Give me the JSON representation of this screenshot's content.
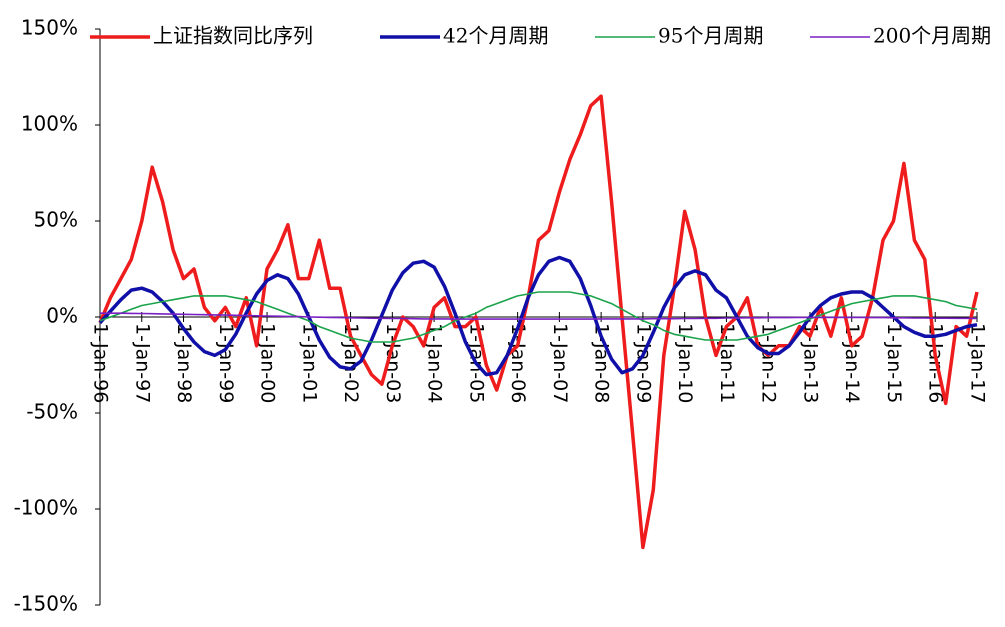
{
  "chart_data": {
    "type": "line",
    "x": [
      "1996-01-01",
      "1996-04-01",
      "1996-07-01",
      "1996-10-01",
      "1997-01-01",
      "1997-04-01",
      "1997-07-01",
      "1997-10-01",
      "1998-01-01",
      "1998-04-01",
      "1998-07-01",
      "1998-10-01",
      "1999-01-01",
      "1999-04-01",
      "1999-07-01",
      "1999-10-01",
      "2000-01-01",
      "2000-04-01",
      "2000-07-01",
      "2000-10-01",
      "2001-01-01",
      "2001-04-01",
      "2001-07-01",
      "2001-10-01",
      "2002-01-01",
      "2002-04-01",
      "2002-07-01",
      "2002-10-01",
      "2003-01-01",
      "2003-04-01",
      "2003-07-01",
      "2003-10-01",
      "2004-01-01",
      "2004-04-01",
      "2004-07-01",
      "2004-10-01",
      "2005-01-01",
      "2005-04-01",
      "2005-07-01",
      "2005-10-01",
      "2006-01-01",
      "2006-04-01",
      "2006-07-01",
      "2006-10-01",
      "2007-01-01",
      "2007-04-01",
      "2007-07-01",
      "2007-10-01",
      "2008-01-01",
      "2008-04-01",
      "2008-07-01",
      "2008-10-01",
      "2009-01-01",
      "2009-04-01",
      "2009-07-01",
      "2009-10-01",
      "2010-01-01",
      "2010-04-01",
      "2010-07-01",
      "2010-10-01",
      "2011-01-01",
      "2011-04-01",
      "2011-07-01",
      "2011-10-01",
      "2012-01-01",
      "2012-04-01",
      "2012-07-01",
      "2012-10-01",
      "2013-01-01",
      "2013-04-01",
      "2013-07-01",
      "2013-10-01",
      "2014-01-01",
      "2014-04-01",
      "2014-07-01",
      "2014-10-01",
      "2015-01-01",
      "2015-04-01",
      "2015-07-01",
      "2015-10-01",
      "2016-01-01",
      "2016-04-01",
      "2016-07-01",
      "2016-10-01",
      "2017-01-01"
    ],
    "series": [
      {
        "name": "上证指数同比序列",
        "color": "#ee1c1c",
        "width": 3.5,
        "values": [
          -3,
          10,
          20,
          30,
          50,
          78,
          60,
          35,
          20,
          25,
          5,
          -2,
          5,
          -5,
          10,
          -15,
          25,
          35,
          48,
          20,
          20,
          40,
          15,
          15,
          -10,
          -20,
          -30,
          -35,
          -15,
          0,
          -5,
          -15,
          5,
          10,
          -5,
          -5,
          0,
          -25,
          -38,
          -20,
          -15,
          10,
          40,
          45,
          65,
          82,
          95,
          110,
          115,
          60,
          0,
          -60,
          -120,
          -90,
          -20,
          15,
          55,
          35,
          0,
          -20,
          -5,
          0,
          10,
          -15,
          -20,
          -15,
          -15,
          -5,
          -10,
          5,
          -10,
          10,
          -15,
          -10,
          10,
          40,
          50,
          80,
          40,
          30,
          -20,
          -45,
          -5,
          -10,
          13
        ]
      },
      {
        "name": "42个月周期",
        "color": "#1010a8",
        "width": 3.5,
        "values": [
          -3,
          3,
          9,
          14,
          15,
          13,
          8,
          2,
          -6,
          -13,
          -18,
          -20,
          -17,
          -9,
          2,
          12,
          19,
          22,
          20,
          12,
          0,
          -12,
          -21,
          -26,
          -27,
          -23,
          -12,
          1,
          14,
          23,
          28,
          29,
          26,
          16,
          2,
          -13,
          -24,
          -30,
          -29,
          -20,
          -6,
          10,
          22,
          29,
          31,
          29,
          20,
          6,
          -10,
          -22,
          -29,
          -27,
          -20,
          -8,
          5,
          15,
          22,
          24,
          22,
          14,
          10,
          0,
          -10,
          -16,
          -19,
          -19,
          -15,
          -8,
          0,
          6,
          10,
          12,
          13,
          13,
          10,
          5,
          0,
          -5,
          -8,
          -10,
          -10,
          -9,
          -7,
          -5,
          -4
        ]
      },
      {
        "name": "95个月周期",
        "color": "#1aa34a",
        "width": 1.6,
        "values": [
          -2,
          0,
          2,
          4,
          6,
          7,
          8,
          9,
          10,
          11,
          11,
          11,
          11,
          10,
          9,
          8,
          6,
          4,
          2,
          0,
          -2,
          -5,
          -7,
          -9,
          -11,
          -12,
          -13,
          -13,
          -13,
          -12,
          -11,
          -9,
          -7,
          -5,
          -2,
          0,
          2,
          5,
          7,
          9,
          11,
          12,
          13,
          13,
          13,
          13,
          12,
          11,
          9,
          7,
          4,
          1,
          -2,
          -4,
          -7,
          -9,
          -10,
          -11,
          -12,
          -12,
          -12,
          -12,
          -11,
          -10,
          -9,
          -7,
          -5,
          -3,
          -1,
          1,
          3,
          5,
          7,
          8,
          9,
          10,
          11,
          11,
          11,
          10,
          9,
          8,
          6,
          5,
          4
        ]
      },
      {
        "name": "200个月周期",
        "color": "#7a1fc4",
        "width": 1.6,
        "values": [
          2,
          2,
          2,
          1.9,
          1.8,
          1.7,
          1.6,
          1.5,
          1.4,
          1.3,
          1.2,
          1.1,
          1,
          0.9,
          0.8,
          0.6,
          0.5,
          0.4,
          0.3,
          0.2,
          0,
          -0.1,
          -0.2,
          -0.3,
          -0.4,
          -0.5,
          -0.6,
          -0.7,
          -0.8,
          -0.8,
          -0.9,
          -1,
          -1,
          -1,
          -1.1,
          -1.1,
          -1.1,
          -1.1,
          -1.1,
          -1.1,
          -1.1,
          -1.1,
          -1.1,
          -1.1,
          -1.1,
          -1.1,
          -1.1,
          -1.1,
          -1,
          -1,
          -1,
          -1,
          -1,
          -0.9,
          -0.9,
          -0.9,
          -0.8,
          -0.8,
          -0.7,
          -0.7,
          -0.5,
          -0.5,
          -0.4,
          -0.4,
          -0.3,
          -0.3,
          -0.3,
          -0.2,
          -0.2,
          -0.2,
          -0.2,
          -0.2,
          -0.2,
          -0.2,
          -0.3,
          -0.3,
          -0.4,
          -0.4,
          -0.5,
          -0.5,
          -0.6,
          -0.6,
          -0.7,
          -0.7,
          -0.8
        ]
      }
    ],
    "xlim": [
      "1996-01-01",
      "2017-01-01"
    ],
    "xticks": [
      {
        "value": "1996-01-01",
        "label": "1-Jan-96"
      },
      {
        "value": "1997-01-01",
        "label": "1-Jan-97"
      },
      {
        "value": "1998-01-01",
        "label": "1-Jan-98"
      },
      {
        "value": "1999-01-01",
        "label": "1-Jan-99"
      },
      {
        "value": "2000-01-01",
        "label": "1-Jan-00"
      },
      {
        "value": "2001-01-01",
        "label": "1-Jan-01"
      },
      {
        "value": "2002-01-01",
        "label": "1-Jan-02"
      },
      {
        "value": "2003-01-01",
        "label": "1-Jan-03"
      },
      {
        "value": "2004-01-01",
        "label": "1-Jan-04"
      },
      {
        "value": "2005-01-01",
        "label": "1-Jan-05"
      },
      {
        "value": "2006-01-01",
        "label": "1-Jan-06"
      },
      {
        "value": "2007-01-01",
        "label": "1-Jan-07"
      },
      {
        "value": "2008-01-01",
        "label": "1-Jan-08"
      },
      {
        "value": "2009-01-01",
        "label": "1-Jan-09"
      },
      {
        "value": "2010-01-01",
        "label": "1-Jan-10"
      },
      {
        "value": "2011-01-01",
        "label": "1-Jan-11"
      },
      {
        "value": "2012-01-01",
        "label": "1-Jan-12"
      },
      {
        "value": "2013-01-01",
        "label": "1-Jan-13"
      },
      {
        "value": "2014-01-01",
        "label": "1-Jan-14"
      },
      {
        "value": "2015-01-01",
        "label": "1-Jan-15"
      },
      {
        "value": "2016-01-01",
        "label": "1-Jan-16"
      },
      {
        "value": "2017-01-01",
        "label": "1-Jan-17"
      }
    ],
    "ylim": [
      -150,
      150
    ],
    "yticks": [
      {
        "value": -150,
        "label": "-150%"
      },
      {
        "value": -100,
        "label": "-100%"
      },
      {
        "value": -50,
        "label": "-50%"
      },
      {
        "value": 0,
        "label": "0%"
      },
      {
        "value": 50,
        "label": "50%"
      },
      {
        "value": 100,
        "label": "100%"
      },
      {
        "value": 150,
        "label": "150%"
      }
    ],
    "legend": "top"
  }
}
